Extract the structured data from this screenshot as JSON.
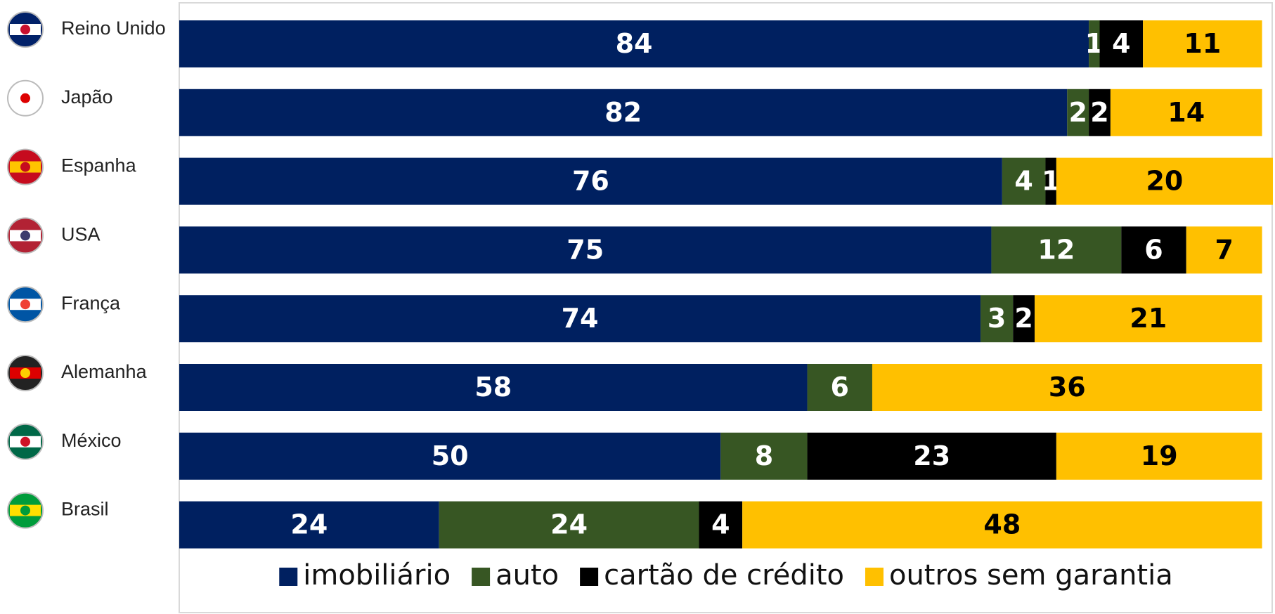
{
  "chart_data": {
    "type": "stacked-bar",
    "orientation": "horizontal",
    "categories": [
      "Reino Unido",
      "Japão",
      "Espanha",
      "USA",
      "França",
      "Alemanha",
      "México",
      "Brasil"
    ],
    "series": [
      {
        "name": "imobiliário",
        "color": "#002060",
        "values": [
          84,
          82,
          76,
          75,
          74,
          58,
          50,
          24
        ]
      },
      {
        "name": "auto",
        "color": "#375623",
        "values": [
          1,
          2,
          4,
          12,
          3,
          6,
          8,
          24
        ]
      },
      {
        "name": "cartão de crédito",
        "color": "#000000",
        "values": [
          4,
          2,
          1,
          6,
          2,
          null,
          23,
          4
        ]
      },
      {
        "name": "outros sem garantia",
        "color": "#ffc000",
        "values": [
          11,
          14,
          20,
          7,
          21,
          36,
          19,
          48
        ]
      }
    ],
    "xlim": [
      0,
      101
    ],
    "legend": "bottom"
  }
}
